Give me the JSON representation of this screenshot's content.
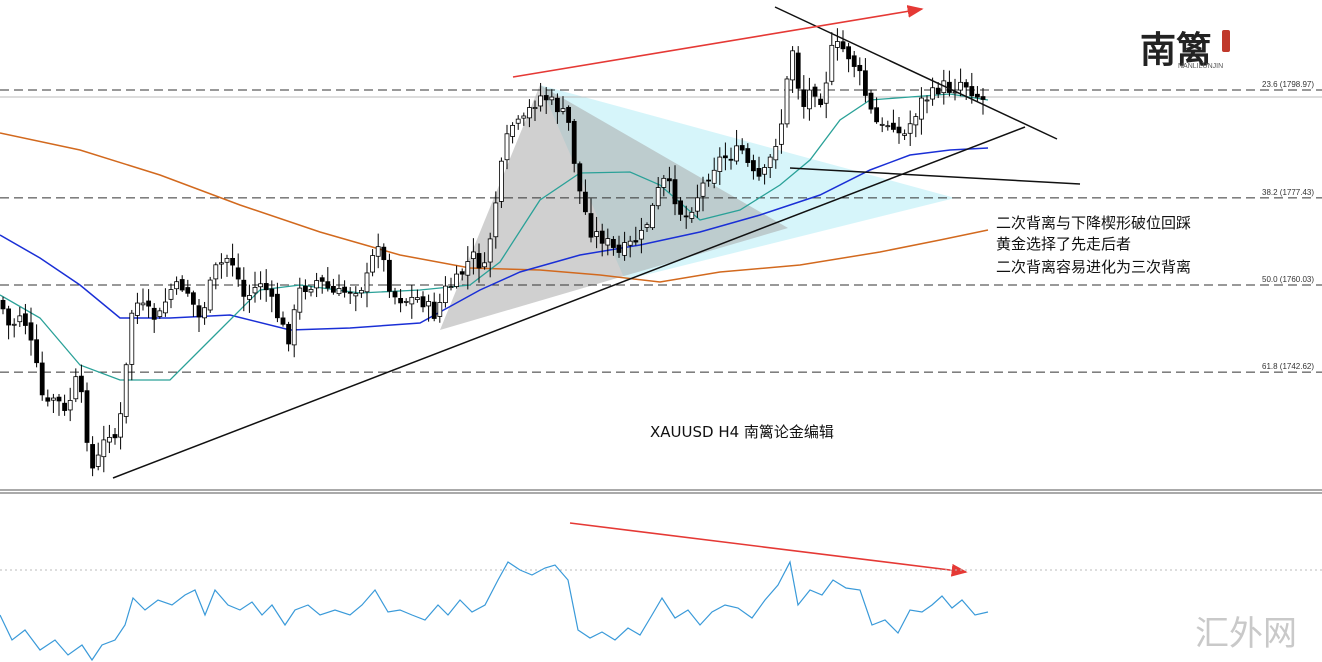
{
  "chart_data": {
    "type": "candlestick",
    "symbol_caption": "XAUUSD  H4  南篱论金编辑",
    "fib_levels": [
      {
        "label": "23.6 (1798.97)",
        "price": 1798.97
      },
      {
        "label": "38.2 (1777.43)",
        "price": 1777.43
      },
      {
        "label": "50.0 (1760.03)",
        "price": 1760.03
      },
      {
        "label": "61.8 (1742.62)",
        "price": 1742.62
      }
    ],
    "y_range": [
      1727,
      1812
    ],
    "annotations": [
      "二次背离与下降楔形破位回踩",
      "黄金选择了先走后者",
      "二次背离容易进化为三次背离"
    ],
    "colors": {
      "candle": "#000000",
      "ma_fast": "#2aa198",
      "ma_mid": "#1a2fd6",
      "ma_slow": "#d2691e",
      "osc": "#3a9ad9",
      "arrow": "#e53935",
      "triangle_gray": "#b0b0b0",
      "triangle_cyan": "#c8f2f8"
    }
  },
  "logo": {
    "main": "南篱",
    "sub": "NANLILUNJIN"
  },
  "watermark": "汇外网"
}
